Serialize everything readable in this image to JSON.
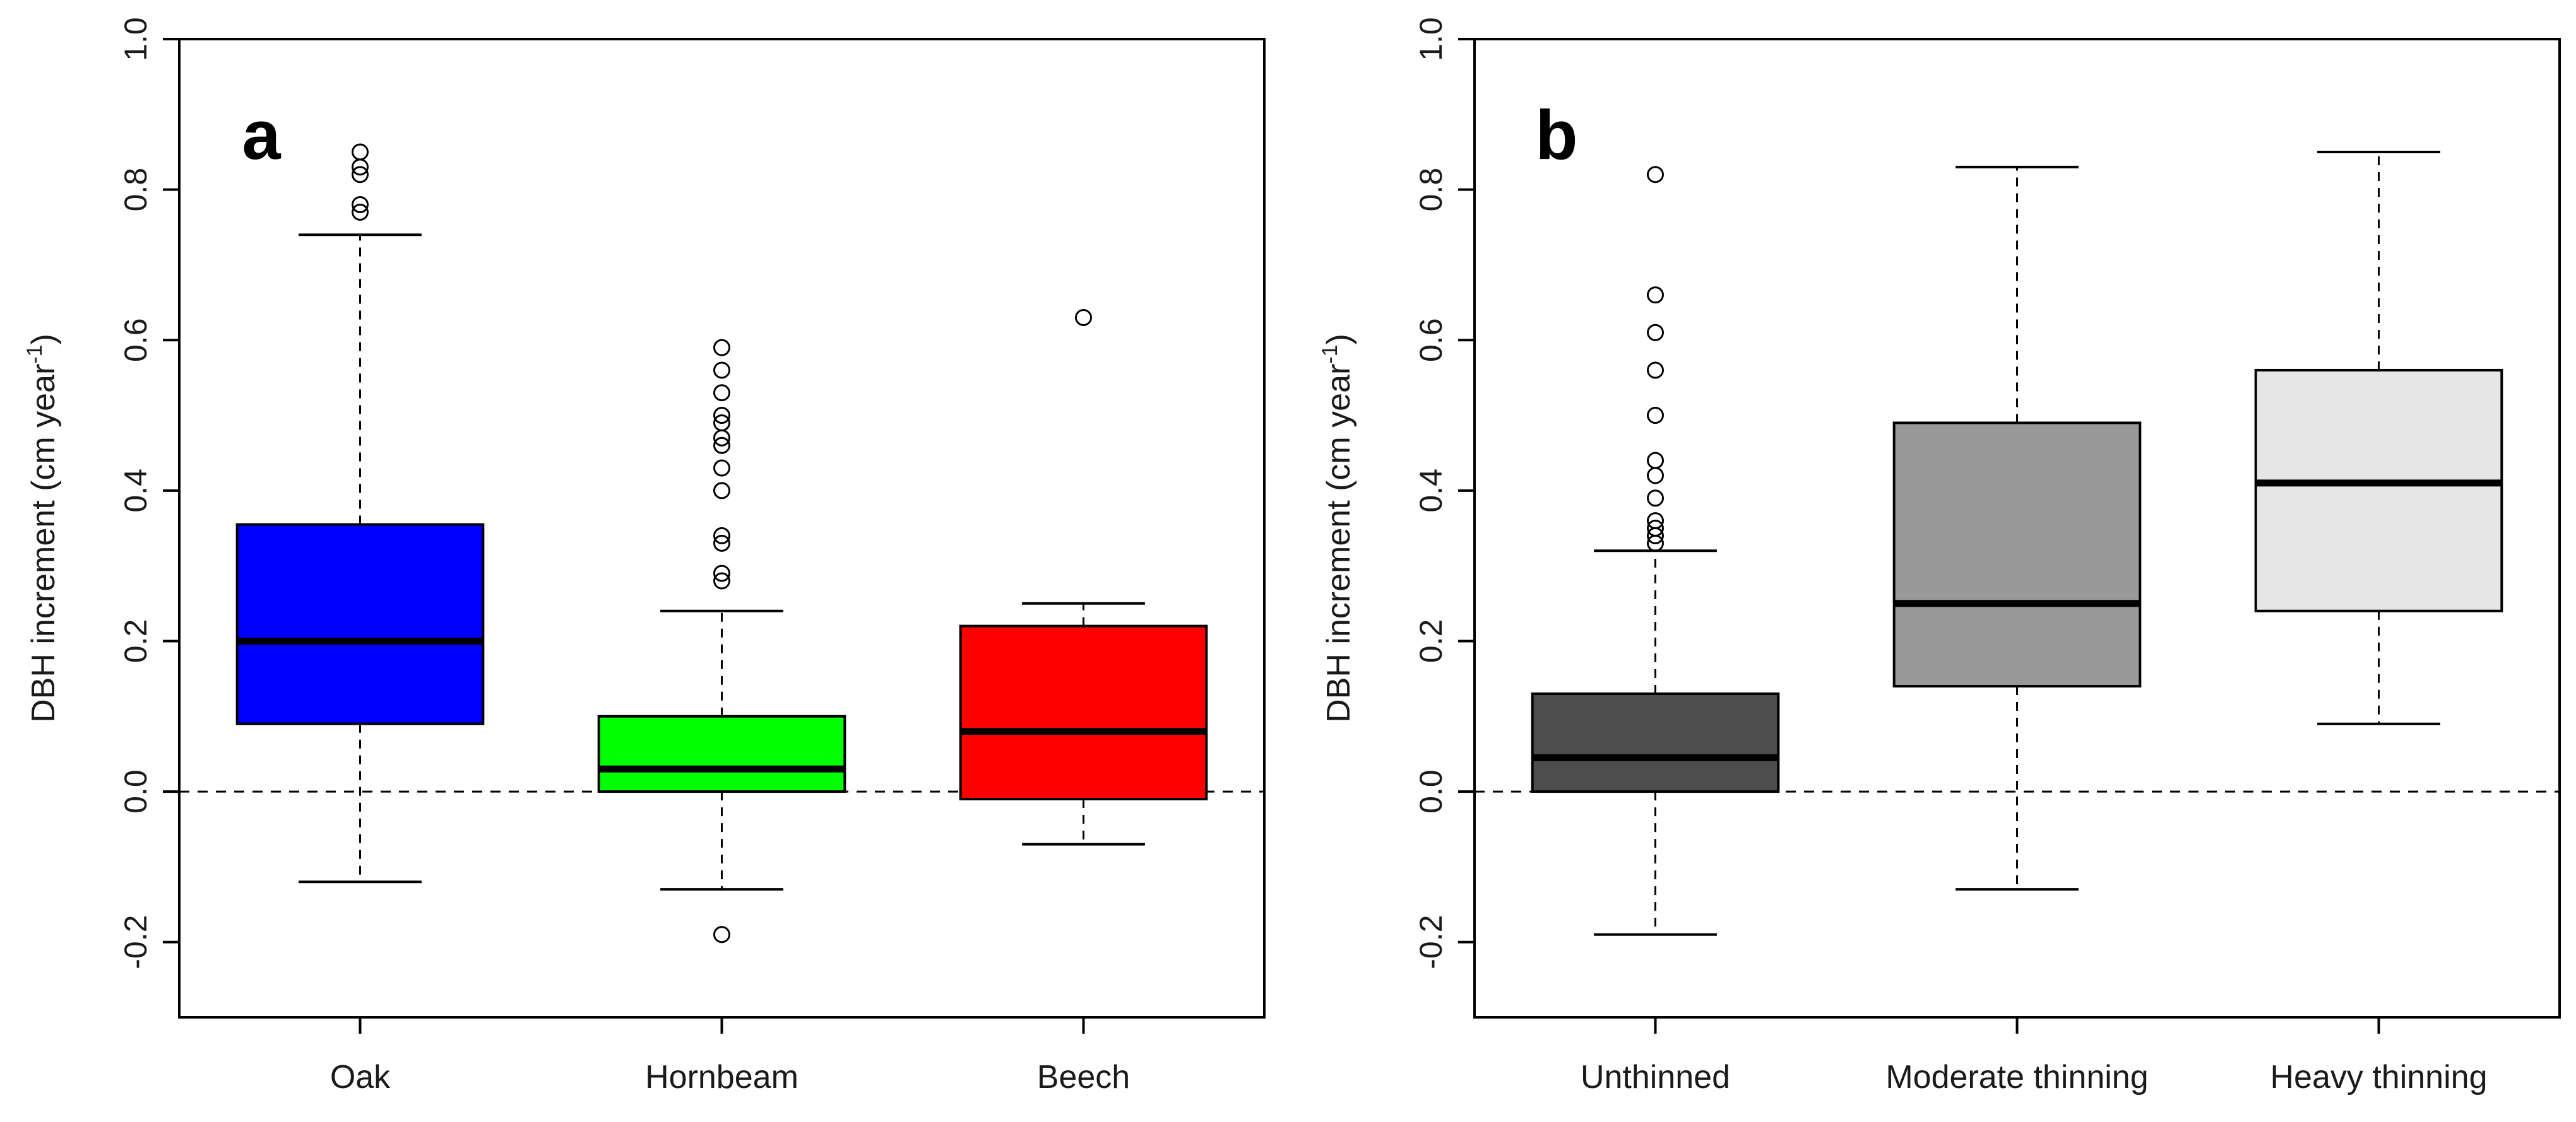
{
  "chart_data": [
    {
      "type": "boxplot",
      "panel_label": "a",
      "ylabel_main": "DBH increment (cm year",
      "ylabel_sup": "-1",
      "ylabel_close": ")",
      "ylim": [
        -0.3,
        1.0
      ],
      "yticks": [
        "-0.2",
        "0.0",
        "0.2",
        "0.4",
        "0.6",
        "0.8",
        "1.0"
      ],
      "reference_line": 0.0,
      "categories": [
        "Oak",
        "Hornbeam",
        "Beech"
      ],
      "boxes": [
        {
          "name": "Oak",
          "color": "#0000ff",
          "whisker_low": -0.12,
          "q1": 0.09,
          "median": 0.2,
          "q3": 0.355,
          "whisker_high": 0.74,
          "outliers": [
            0.77,
            0.78,
            0.82,
            0.83,
            0.85
          ]
        },
        {
          "name": "Hornbeam",
          "color": "#00ff00",
          "whisker_low": -0.13,
          "q1": 0.0,
          "median": 0.03,
          "q3": 0.1,
          "whisker_high": 0.24,
          "outliers": [
            -0.19,
            0.28,
            0.29,
            0.33,
            0.34,
            0.4,
            0.43,
            0.46,
            0.47,
            0.49,
            0.5,
            0.53,
            0.56,
            0.59
          ]
        },
        {
          "name": "Beech",
          "color": "#ff0000",
          "whisker_low": -0.07,
          "q1": -0.01,
          "median": 0.08,
          "q3": 0.22,
          "whisker_high": 0.25,
          "outliers": [
            0.63
          ]
        }
      ]
    },
    {
      "type": "boxplot",
      "panel_label": "b",
      "ylabel_main": "DBH increment (cm year",
      "ylabel_sup": "-1",
      "ylabel_close": ")",
      "ylim": [
        -0.3,
        1.0
      ],
      "yticks": [
        "-0.2",
        "0.0",
        "0.2",
        "0.4",
        "0.6",
        "0.8",
        "1.0"
      ],
      "reference_line": 0.0,
      "categories": [
        "Unthinned",
        "Moderate thinning",
        "Heavy thinning"
      ],
      "boxes": [
        {
          "name": "Unthinned",
          "color": "#4d4d4d",
          "whisker_low": -0.19,
          "q1": 0.0,
          "median": 0.045,
          "q3": 0.13,
          "whisker_high": 0.32,
          "outliers": [
            0.33,
            0.34,
            0.35,
            0.36,
            0.39,
            0.42,
            0.44,
            0.5,
            0.56,
            0.61,
            0.66,
            0.82
          ]
        },
        {
          "name": "Moderate thinning",
          "color": "#999999",
          "whisker_low": -0.13,
          "q1": 0.14,
          "median": 0.25,
          "q3": 0.49,
          "whisker_high": 0.83,
          "outliers": []
        },
        {
          "name": "Heavy thinning",
          "color": "#e6e6e6",
          "whisker_low": 0.09,
          "q1": 0.24,
          "median": 0.41,
          "q3": 0.56,
          "whisker_high": 0.85,
          "outliers": []
        }
      ]
    }
  ]
}
